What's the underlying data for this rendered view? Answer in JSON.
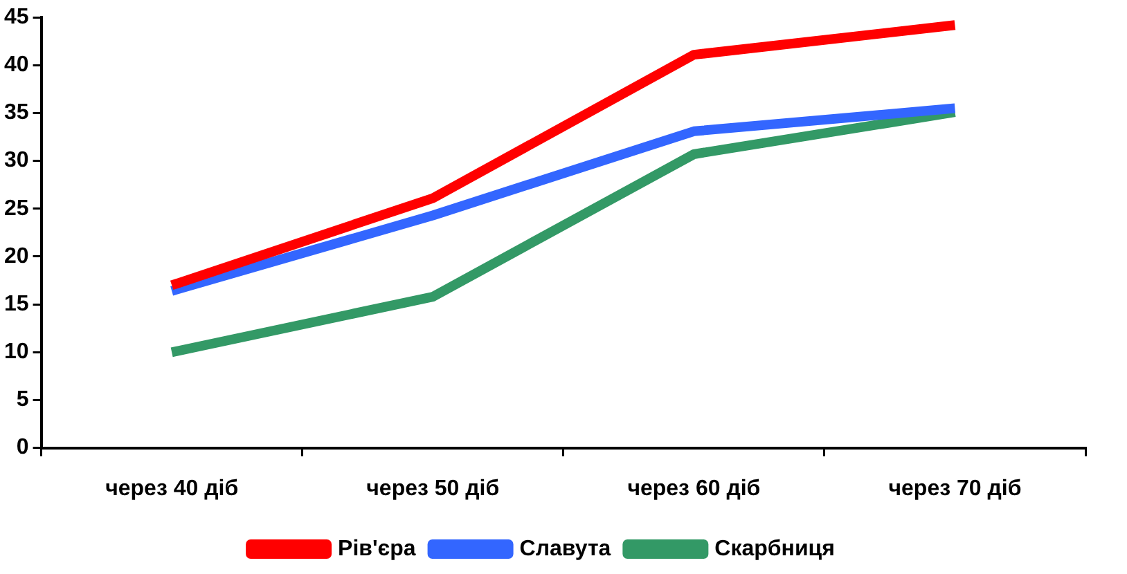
{
  "chart_data": {
    "type": "line",
    "categories": [
      "через 40 діб",
      "через 50 діб",
      "через 60 діб",
      "через 70 діб"
    ],
    "series": [
      {
        "name": "Рів'єра",
        "color": "#ff0000",
        "values": [
          17,
          26.1,
          41.1,
          44.2
        ]
      },
      {
        "name": "Славута",
        "color": "#3366ff",
        "values": [
          16.4,
          24.3,
          33.1,
          35.5
        ]
      },
      {
        "name": "Скарбниця",
        "color": "#339966",
        "values": [
          10,
          15.8,
          30.7,
          35.1
        ]
      }
    ],
    "ylim": [
      0,
      45
    ],
    "yticks": [
      0,
      5,
      10,
      15,
      20,
      25,
      30,
      35,
      40,
      45
    ],
    "grid": false,
    "legend": "bottom",
    "marker": "none",
    "line_style": "solid"
  }
}
